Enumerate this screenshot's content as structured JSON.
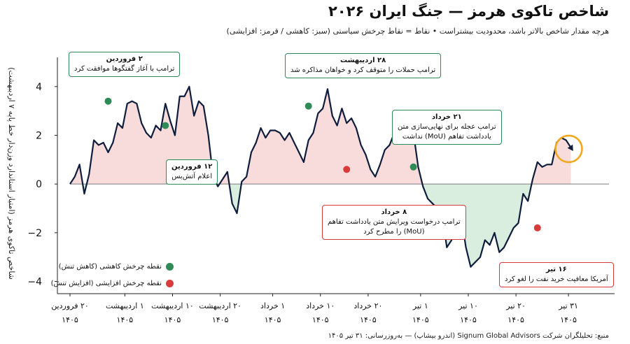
{
  "title": "شاخص تاکوی هرمز — جنگ ایران ۲۰۲۶",
  "subtitle": "هرچه مقدار شاخص بالاتر باشد، محدودیت بیشتراست • نقاط = نقاط چرخش سیاستی (سبز: کاهشی / قرمز: افزایشی)",
  "source": "منبع: تحلیلگران شرکت Signum Global Advisors (اندرو بیشاپ) — به‌روزرسانی: ۳۱ تیر ۱۴۰۵",
  "colors": {
    "line": "#0f1d3d",
    "fill_positive": "#f8dcdc",
    "fill_negative": "#d9eede",
    "turn_down": "#2e8b57",
    "turn_up": "#d93b3b",
    "highlight": "#f2a81d"
  },
  "legend": {
    "down": "نقطه چرخش کاهشی (کاهش تنش)",
    "up": "نقطه چرخش افزایشی (افزایش تنش)"
  },
  "callouts": [
    {
      "date": "۲ فروردین",
      "text": "ترامپ با آغاز گفتگوها موافقت کرد",
      "kind": "green"
    },
    {
      "date": "۱۲ فروردین",
      "text": "اعلام آتش‌بس",
      "kind": "green"
    },
    {
      "date": "۲۸ اردیبهشت",
      "text": "ترامپ حملات را متوقف کرد و خواهان مذاکره شد",
      "kind": "green"
    },
    {
      "date": "۲۱ خرداد",
      "text": "ترامپ عجله برای نهایی‌سازی متن",
      "text2": "یادداشت تفاهم (MoU) نداشت",
      "kind": "green"
    },
    {
      "date": "۸ خرداد",
      "text": "ترامپ درخواست ویرایش متن یادداشت تفاهم",
      "text2": "(MoU) را مطرح کرد",
      "kind": "red"
    },
    {
      "date": "۱۶ تیر",
      "text": "آمریکا معافیت خرید نفت را لغو کرد",
      "kind": "red"
    }
  ],
  "chart_data": {
    "type": "area",
    "title": "شاخص تاکوی هرمز — جنگ ایران ۲۰۲۶",
    "ylabel": "شاخص تاکوی هرمز (امتیاز استاندارد وزن‌دار خط پایه ۷ اردیبهشت)",
    "xlabel": "",
    "ylim": [
      -4.5,
      5.2
    ],
    "yticks": [
      -4,
      -2,
      0,
      2,
      4
    ],
    "xlim": [
      0,
      113
    ],
    "xticks": [
      {
        "x": 0,
        "line1": "۲۰ فروردین",
        "line2": "۱۴۰۵"
      },
      {
        "x": 11.5,
        "line1": "۱ اردیبهشت",
        "line2": "۱۴۰۵"
      },
      {
        "x": 21.5,
        "line1": "۱۰ اردیبهشت",
        "line2": "۱۴۰۵"
      },
      {
        "x": 31.5,
        "line1": "۲۰ اردیبهشت",
        "line2": "۱۴۰۵"
      },
      {
        "x": 42.5,
        "line1": "۱ خرداد",
        "line2": "۱۴۰۵"
      },
      {
        "x": 52.5,
        "line1": "۱۰ خرداد",
        "line2": "۱۴۰۵"
      },
      {
        "x": 62.5,
        "line1": "۲۰ خرداد",
        "line2": "۱۴۰۵"
      },
      {
        "x": 73.5,
        "line1": "۱ تیر",
        "line2": "۱۴۰۵"
      },
      {
        "x": 83.5,
        "line1": "۱۰ تیر",
        "line2": "۱۴۰۵"
      },
      {
        "x": 93.5,
        "line1": "۲۰ تیر",
        "line2": "۱۴۰۵"
      },
      {
        "x": 104.5,
        "line1": "۳۱ تیر",
        "line2": "۱۴۰۵"
      }
    ],
    "series": [
      {
        "x": [
          0,
          1,
          2,
          3,
          4,
          5,
          6,
          7,
          8,
          9,
          10,
          11,
          12,
          13,
          14,
          15,
          16,
          17,
          18,
          19,
          20,
          21,
          22,
          23,
          24,
          25,
          26,
          27,
          28,
          29,
          30,
          31,
          32,
          33,
          34,
          35,
          36,
          37,
          38,
          39,
          40,
          41,
          42,
          43,
          44,
          45,
          46,
          47,
          48,
          49,
          50,
          51,
          52,
          53,
          54,
          55,
          56,
          57,
          58,
          59,
          60,
          61,
          62,
          63,
          64,
          65,
          66,
          67,
          68,
          69,
          70,
          71,
          72,
          73,
          74,
          75,
          76,
          77,
          78,
          79,
          80,
          81,
          82,
          83,
          84,
          85,
          86,
          87,
          88,
          89,
          90,
          91,
          92,
          93,
          94,
          95,
          96,
          97,
          98,
          99,
          100,
          101,
          102,
          103,
          104,
          105
        ],
        "y": [
          0,
          0.3,
          0.8,
          -0.4,
          0.4,
          1.8,
          1.6,
          1.7,
          1.3,
          1.7,
          2.5,
          2.3,
          3.3,
          3.4,
          3.3,
          2.5,
          2.1,
          1.9,
          2.4,
          2.2,
          3.3,
          2.6,
          2.0,
          3.6,
          3.6,
          4.0,
          2.8,
          3.4,
          3.2,
          2.0,
          0.3,
          -0.1,
          0.2,
          0.5,
          -0.8,
          -1.2,
          0.1,
          0.3,
          1.3,
          1.7,
          2.3,
          1.9,
          2.2,
          2.2,
          2.1,
          1.8,
          2.1,
          1.7,
          1.3,
          0.9,
          1.8,
          2.1,
          2.9,
          3.1,
          3.9,
          2.8,
          2.4,
          3.1,
          2.5,
          2.7,
          2.3,
          1.6,
          1.2,
          0.6,
          0.3,
          0.8,
          1.4,
          1.6,
          2.1,
          1.8,
          2.2,
          2.5,
          2.1,
          0.7,
          -0.1,
          -0.6,
          -0.8,
          -1.0,
          -1.2,
          -2.6,
          -2.3,
          -1.4,
          -1.3,
          -2.6,
          -3.4,
          -3.2,
          -3.0,
          -2.3,
          -2.5,
          -2.0,
          -2.8,
          -2.6,
          -2.2,
          -1.8,
          -1.6,
          -0.4,
          -0.7,
          0.2,
          0.9,
          0.7,
          0.8,
          0.8,
          1.7,
          1.9,
          1.8,
          1.5
        ]
      }
    ],
    "turning_points": [
      {
        "x": 8,
        "y": 3.4,
        "kind": "down",
        "label": "۲ فروردین"
      },
      {
        "x": 20,
        "y": 2.4,
        "kind": "down",
        "label": "۱۲ فروردین"
      },
      {
        "x": 50,
        "y": 3.2,
        "kind": "down",
        "label": "۲۸ اردیبهشت"
      },
      {
        "x": 72,
        "y": 0.7,
        "kind": "down",
        "label": "۲۱ خرداد"
      },
      {
        "x": 58,
        "y": 0.6,
        "kind": "up",
        "label": "۸ خرداد"
      },
      {
        "x": 98,
        "y": -1.8,
        "kind": "up",
        "label": "۱۶ تیر"
      }
    ]
  }
}
